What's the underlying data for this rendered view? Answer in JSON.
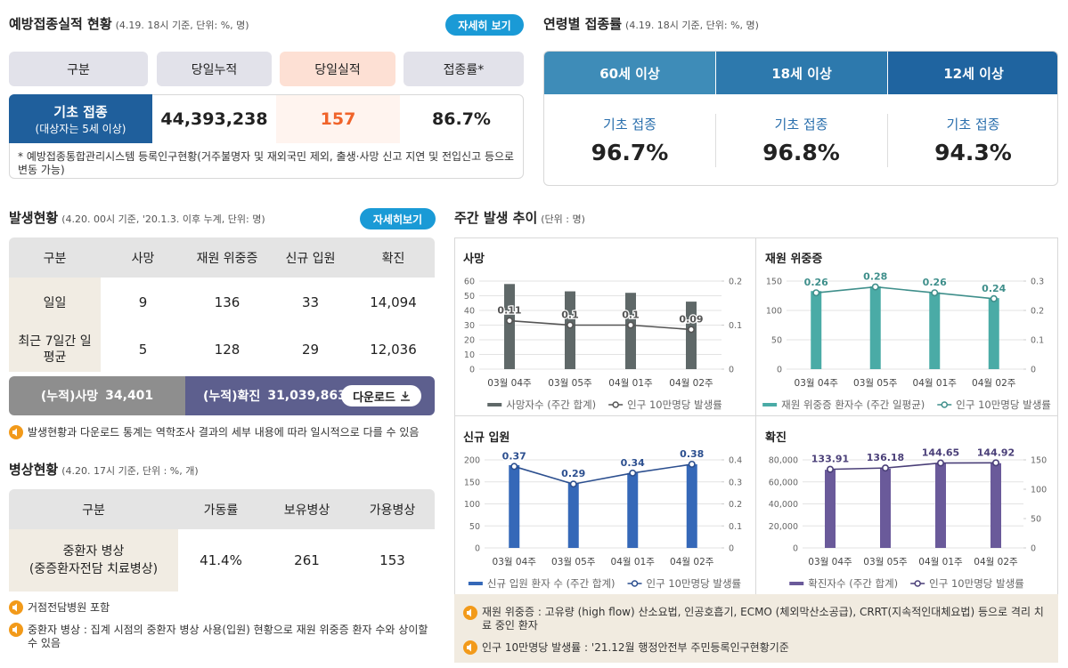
{
  "vaccination": {
    "title": "예방접종실적 현황",
    "subtitle": "(4.19. 18시 기준, 단위: %, 명)",
    "button": "자세히 보기",
    "headers": [
      "구분",
      "당일누적",
      "당일실적",
      "접종률*"
    ],
    "row": {
      "label": "기초 접종",
      "sublabel": "(대상자는 5세 이상)",
      "values": [
        "44,393,238",
        "157",
        "86.7%"
      ]
    },
    "note": "* 예방접종통합관리시스템 등록인구현황(거주불명자 및 재외국민 제외, 출생·사망 신고 지연 및 전입신고 등으로 변동 가능)"
  },
  "age": {
    "title": "연령별 접종률",
    "subtitle": "(4.19. 18시 기준, 단위: %, 명)",
    "groups": [
      {
        "name": "60세 이상",
        "label": "기초 접종",
        "value": "96.7%"
      },
      {
        "name": "18세 이상",
        "label": "기초 접종",
        "value": "96.8%"
      },
      {
        "name": "12세 이상",
        "label": "기초 접종",
        "value": "94.3%"
      }
    ]
  },
  "incidence": {
    "title": "발생현황",
    "subtitle": "(4.20. 00시 기준, '20.1.3. 이후 누계, 단위: 명)",
    "button": "자세히보기",
    "headers": [
      "구분",
      "사망",
      "재원 위중증",
      "신규 입원",
      "확진"
    ],
    "rows": [
      [
        "일일",
        "9",
        "136",
        "33",
        "14,094"
      ],
      [
        "최근 7일간 일평균",
        "5",
        "128",
        "29",
        "12,036"
      ]
    ],
    "cumulative": [
      {
        "label": "(누적)사망",
        "value": "34,401"
      },
      {
        "label": "(누적)확진",
        "value": "31,039,863"
      }
    ],
    "download": "다운로드",
    "note": "발생현황과 다운로드 통계는 역학조사 결과의 세부 내용에 따라 일시적으로 다를 수 있음"
  },
  "beds": {
    "title": "병상현황",
    "subtitle": "(4.20. 17시 기준, 단위 : %, 개)",
    "headers": [
      "구분",
      "가동률",
      "보유병상",
      "가용병상"
    ],
    "row": {
      "label": "중환자 병상",
      "sublabel": "(중증환자전담 치료병상)",
      "values": [
        "41.4%",
        "261",
        "153"
      ]
    },
    "notes": [
      "거점전담병원 포함",
      "중환자 병상 : 집계 시점의 중환자 병상 사용(입원) 현황으로 재원 위중증 환자 수와 상이할 수 있음"
    ]
  },
  "weekly": {
    "title": "주간 발생 추이",
    "subtitle": "(단위 : 명)",
    "charts": [
      {
        "type": "combo",
        "title": "사망",
        "categories": [
          "03월 04주",
          "03월 05주",
          "04월 01주",
          "04월 02주"
        ],
        "series": [
          {
            "name": "사망자수 (주간 합계)",
            "color": "#5f6868",
            "values": [
              58,
              53,
              52,
              46
            ]
          },
          {
            "name": "인구 10만명당 발생률",
            "color": "#555555",
            "values": [
              0.11,
              0.1,
              0.1,
              0.09
            ],
            "axis": "y2"
          }
        ],
        "ylim": [
          0,
          60
        ],
        "yticks": [
          0,
          10,
          20,
          30,
          40,
          50,
          60
        ],
        "y2lim": [
          0,
          0.2
        ],
        "y2ticks": [
          0,
          0.1,
          0.2
        ]
      },
      {
        "type": "combo",
        "title": "재원 위중증",
        "categories": [
          "03월 04주",
          "03월 05주",
          "04월 01주",
          "04월 02주"
        ],
        "series": [
          {
            "name": "재원 위중증 환자수 (주간 일평균)",
            "color": "#4aaba6",
            "values": [
              133,
              141,
              131,
              121
            ]
          },
          {
            "name": "인구 10만명당 발생률",
            "color": "#3f8f8b",
            "values": [
              0.26,
              0.28,
              0.26,
              0.24
            ],
            "axis": "y2"
          }
        ],
        "ylim": [
          0,
          150
        ],
        "yticks": [
          0,
          50,
          100,
          150
        ],
        "y2lim": [
          0,
          0.3
        ],
        "y2ticks": [
          0,
          0.1,
          0.2,
          0.3
        ]
      },
      {
        "type": "combo",
        "title": "신규 입원",
        "categories": [
          "03월 04주",
          "03월 05주",
          "04월 01주",
          "04월 02주"
        ],
        "series": [
          {
            "name": "신규 입원 환자 수 (주간 합계)",
            "color": "#3568b8",
            "values": [
              188,
              147,
              170,
              190
            ]
          },
          {
            "name": "인구 10만명당 발생률",
            "color": "#2c4f8f",
            "values": [
              0.37,
              0.29,
              0.34,
              0.38
            ],
            "axis": "y2"
          }
        ],
        "ylim": [
          0,
          200
        ],
        "yticks": [
          0,
          50,
          100,
          150,
          200
        ],
        "y2lim": [
          0,
          0.4
        ],
        "y2ticks": [
          0,
          0.1,
          0.2,
          0.3,
          0.4
        ]
      },
      {
        "type": "combo",
        "title": "확진",
        "categories": [
          "03월 04주",
          "03월 05주",
          "04월 01주",
          "04월 02주"
        ],
        "series": [
          {
            "name": "확진자수 (주간 합계)",
            "color": "#6a5a9a",
            "values": [
              71000,
              72000,
              77000,
              77000
            ]
          },
          {
            "name": "인구 10만명당 발생률",
            "color": "#4a3f78",
            "values": [
              133.91,
              136.18,
              144.65,
              144.92
            ],
            "axis": "y2"
          }
        ],
        "ylim": [
          0,
          80000
        ],
        "yticks": [
          0,
          {
            "value": 20000,
            "label": "20,000"
          },
          {
            "value": 40000,
            "label": "40,000"
          },
          {
            "value": 60000,
            "label": "60,000"
          },
          {
            "value": 80000,
            "label": "80,000"
          }
        ],
        "y2lim": [
          0,
          150
        ],
        "y2ticks": [
          0,
          50,
          100,
          150
        ]
      }
    ],
    "notes": [
      "재원 위중증 : 고유량 (high flow) 산소요법, 인공호흡기, ECMO (체외막산소공급), CRRT(지속적인대체요법) 등으로 격리 치료 중인 환자",
      "인구 10만명당 발생률 : '21.12월 행정안전부 주민등록인구현황기준"
    ]
  }
}
